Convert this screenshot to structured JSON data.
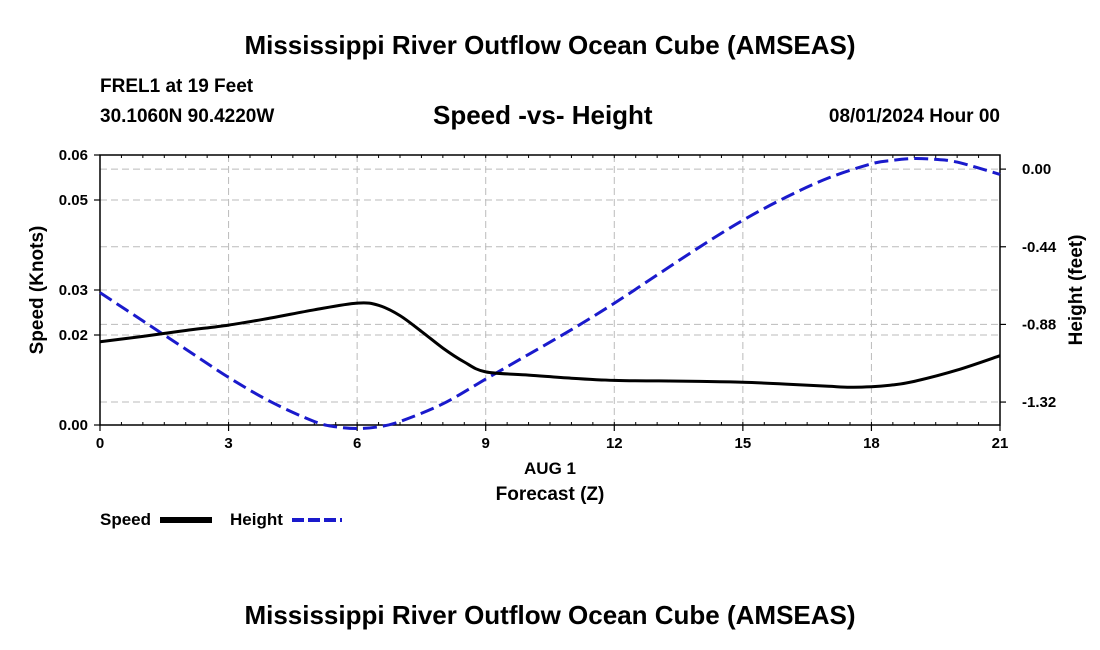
{
  "header": {
    "title": "Mississippi River Outflow Ocean Cube (AMSEAS)",
    "station": "FREL1 at 19 Feet",
    "coords": "30.1060N  90.4220W",
    "subtitle": "Speed -vs- Height",
    "date": "08/01/2024 Hour 00"
  },
  "footer": {
    "title": "Mississippi River Outflow Ocean Cube (AMSEAS)"
  },
  "chart_data": {
    "type": "line",
    "title": "Speed -vs- Height",
    "xlabel": "Forecast (Z)",
    "x_date_label": "AUG 1",
    "ylabel": "Speed (Knots)",
    "y2label": "Height (feet)",
    "xlim": [
      0,
      21
    ],
    "ylim": [
      0,
      0.06
    ],
    "y2lim": [
      -1.45,
      0.08
    ],
    "x_ticks": [
      0,
      3,
      6,
      9,
      12,
      15,
      18,
      21
    ],
    "x_tick_labels": [
      "0",
      "3",
      "6",
      "9",
      "12",
      "15",
      "18",
      "21"
    ],
    "y_ticks": [
      0,
      0.02,
      0.03,
      0.05,
      0.06
    ],
    "y_tick_labels": [
      "0.00",
      "0.02",
      "0.03",
      "0.05",
      "0.06"
    ],
    "y2_ticks": [
      0.0,
      -0.44,
      -0.88,
      -1.32
    ],
    "y2_tick_labels": [
      "0.00",
      "-0.44",
      "-0.88",
      "-1.32"
    ],
    "grid": true,
    "series": [
      {
        "name": "Speed",
        "axis": "left",
        "color": "#000000",
        "style": "solid",
        "x": [
          0,
          1,
          2,
          3,
          4,
          5,
          6,
          6.5,
          7,
          7.5,
          8,
          8.5,
          9,
          10,
          11,
          12,
          13,
          14,
          15,
          16,
          17,
          17.5,
          18,
          18.5,
          19,
          20,
          21
        ],
        "values": [
          0.0185,
          0.0197,
          0.021,
          0.0222,
          0.0238,
          0.0256,
          0.0271,
          0.0266,
          0.0243,
          0.0208,
          0.0171,
          0.014,
          0.0118,
          0.0111,
          0.0104,
          0.0099,
          0.0098,
          0.0097,
          0.0095,
          0.0091,
          0.0086,
          0.0084,
          0.0085,
          0.0089,
          0.0097,
          0.0122,
          0.0154
        ]
      },
      {
        "name": "Height",
        "axis": "right",
        "color": "#1a1acc",
        "style": "dashed",
        "x": [
          0,
          1,
          2,
          3,
          4,
          5,
          5.5,
          6,
          6.5,
          7,
          8,
          9,
          10,
          11,
          12,
          13,
          14,
          15,
          16,
          17,
          18,
          18.5,
          19,
          19.5,
          20,
          21
        ],
        "values": [
          -0.7,
          -0.86,
          -1.02,
          -1.18,
          -1.32,
          -1.43,
          -1.46,
          -1.47,
          -1.46,
          -1.43,
          -1.33,
          -1.19,
          -1.05,
          -0.91,
          -0.76,
          -0.6,
          -0.44,
          -0.29,
          -0.16,
          -0.05,
          0.03,
          0.05,
          0.06,
          0.055,
          0.04,
          -0.03
        ]
      }
    ],
    "legend": [
      {
        "label": "Speed",
        "color": "#000000",
        "style": "solid"
      },
      {
        "label": "Height",
        "color": "#1a1acc",
        "style": "dashed"
      }
    ]
  }
}
